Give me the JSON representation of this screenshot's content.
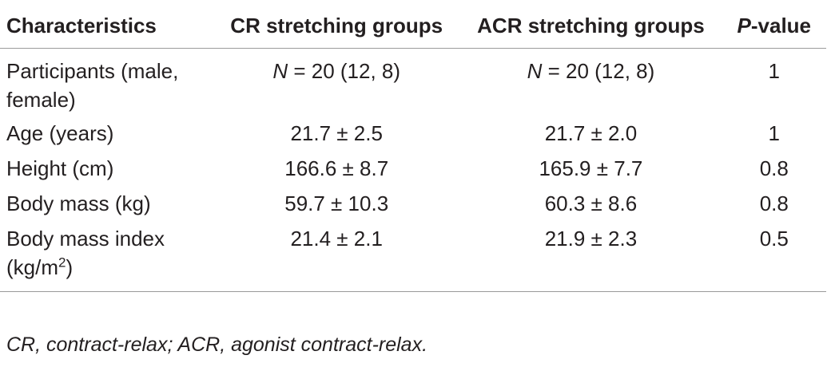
{
  "table": {
    "headers": {
      "characteristics": "Characteristics",
      "cr": "CR stretching groups",
      "acr": "ACR stretching groups",
      "p_italic": "P",
      "p_rest": "-value"
    },
    "rows": [
      {
        "label_line1": "Participants (male,",
        "label_line2": "female)",
        "cr_italic": "N",
        "cr_rest": " = 20 (12, 8)",
        "acr_italic": "N",
        "acr_rest": " = 20 (12, 8)",
        "p": "1"
      },
      {
        "label": "Age (years)",
        "cr": "21.7 ± 2.5",
        "acr": "21.7 ± 2.0",
        "p": "1"
      },
      {
        "label": "Height (cm)",
        "cr": "166.6 ± 8.7",
        "acr": "165.9 ± 7.7",
        "p": "0.8"
      },
      {
        "label": "Body mass (kg)",
        "cr": "59.7 ± 10.3",
        "acr": "60.3 ± 8.6",
        "p": "0.8"
      },
      {
        "label_line1": "Body mass index",
        "label_line2_base": "(kg/m",
        "label_line2_sup": "2",
        "label_line2_end": ")",
        "cr": "21.4 ± 2.1",
        "acr": "21.9 ± 2.3",
        "p": "0.5"
      }
    ]
  },
  "footnote": "CR, contract-relax; ACR, agonist contract-relax."
}
